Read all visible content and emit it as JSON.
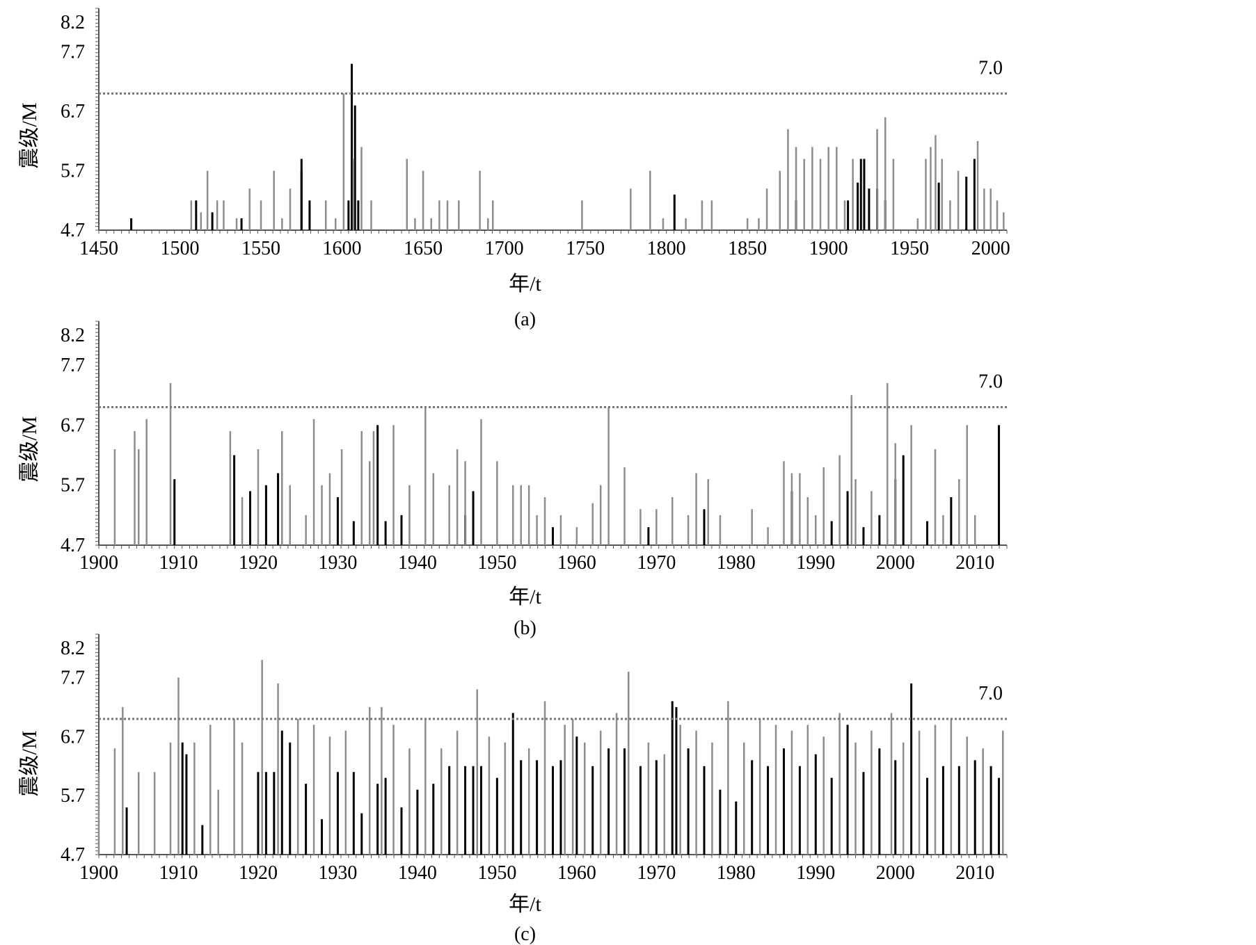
{
  "colors": {
    "dark": "#000000",
    "light": "#8c8c8c",
    "axis": "#555555",
    "threshold": "#777777"
  },
  "chart_data": [
    {
      "type": "bar",
      "caption": "(a)",
      "xlabel": "年/t",
      "ylabel": "震级/M",
      "xlim": [
        1450,
        2010
      ],
      "ylim": [
        4.7,
        8.2
      ],
      "xticks": [
        "1450",
        "1500",
        "1550",
        "1600",
        "1650",
        "1700",
        "1750",
        "1800",
        "1850",
        "1900",
        "1950",
        "2000"
      ],
      "yticks": [
        "4.7",
        "5.7",
        "6.7",
        "7.7",
        "8.2"
      ],
      "threshold": 7.0,
      "threshold_label": "7.0",
      "series": [
        {
          "color": "dark",
          "x": [
            1470,
            1510,
            1520,
            1538,
            1575,
            1575,
            1580,
            1604,
            1606,
            1608,
            1610,
            1805,
            1880,
            1912,
            1918,
            1920,
            1922,
            1925,
            1930,
            1935,
            1968,
            1985,
            1990
          ],
          "y": [
            4.9,
            5.2,
            5.0,
            4.9,
            5.7,
            5.9,
            5.2,
            5.2,
            7.5,
            6.8,
            5.2,
            5.3,
            5.2,
            5.2,
            5.5,
            5.9,
            5.9,
            5.4,
            5.4,
            5.2,
            5.5,
            5.6,
            5.9
          ]
        },
        {
          "color": "light",
          "x": [
            1507,
            1513,
            1517,
            1523,
            1527,
            1535,
            1543,
            1550,
            1558,
            1563,
            1568,
            1590,
            1596,
            1601,
            1607,
            1612,
            1618,
            1640,
            1645,
            1650,
            1655,
            1660,
            1665,
            1672,
            1685,
            1690,
            1693,
            1748,
            1778,
            1790,
            1798,
            1812,
            1822,
            1828,
            1850,
            1857,
            1862,
            1870,
            1875,
            1880,
            1885,
            1890,
            1895,
            1900,
            1905,
            1910,
            1915,
            1930,
            1935,
            1940,
            1955,
            1960,
            1963,
            1966,
            1970,
            1975,
            1980,
            1992,
            1996,
            2000,
            2004,
            2008
          ],
          "y": [
            5.2,
            5.0,
            5.7,
            5.2,
            5.2,
            4.9,
            5.4,
            5.2,
            5.7,
            4.9,
            5.4,
            5.2,
            4.9,
            7.0,
            5.9,
            6.1,
            5.2,
            5.9,
            4.9,
            5.7,
            4.9,
            5.2,
            5.2,
            5.2,
            5.7,
            4.9,
            5.2,
            5.2,
            5.4,
            5.7,
            4.9,
            4.9,
            5.2,
            5.2,
            4.9,
            4.9,
            5.4,
            5.7,
            6.4,
            6.1,
            5.9,
            6.1,
            5.9,
            6.1,
            6.1,
            5.2,
            5.9,
            6.4,
            6.6,
            5.9,
            4.9,
            5.9,
            6.1,
            6.3,
            5.9,
            5.2,
            5.7,
            6.2,
            5.4,
            5.4,
            5.2,
            5.0
          ]
        }
      ]
    },
    {
      "type": "bar",
      "caption": "(b)",
      "xlabel": "年/t",
      "ylabel": "震级/M",
      "xlim": [
        1900,
        2014
      ],
      "ylim": [
        4.7,
        8.2
      ],
      "xticks": [
        "1900",
        "1910",
        "1920",
        "1930",
        "1940",
        "1950",
        "1960",
        "1970",
        "1980",
        "1990",
        "2000",
        "2010"
      ],
      "yticks": [
        "4.7",
        "5.7",
        "6.7",
        "7.7",
        "8.2"
      ],
      "threshold": 7.0,
      "threshold_label": "7.0",
      "series": [
        {
          "color": "dark",
          "x": [
            1909.5,
            1917,
            1919,
            1921,
            1922.5,
            1930,
            1932,
            1935,
            1936,
            1938,
            1946,
            1947,
            1957,
            1969,
            1976,
            1987,
            1992,
            1994,
            1996,
            1998,
            2000,
            2001,
            2004,
            2007,
            2013
          ],
          "y": [
            5.8,
            6.2,
            5.6,
            5.7,
            5.9,
            5.5,
            5.1,
            6.7,
            5.1,
            5.2,
            5.2,
            5.6,
            5.0,
            5.0,
            5.3,
            5.6,
            5.1,
            5.6,
            5.0,
            5.2,
            5.8,
            6.2,
            5.1,
            5.5,
            6.7
          ]
        },
        {
          "color": "light",
          "x": [
            1902,
            1904.5,
            1905,
            1906,
            1909,
            1916.5,
            1918,
            1920,
            1923,
            1924,
            1926,
            1927,
            1928,
            1929,
            1930.5,
            1933,
            1934,
            1934.5,
            1937,
            1939,
            1941,
            1942,
            1944,
            1945,
            1946,
            1948,
            1950,
            1952,
            1953,
            1954,
            1955,
            1956,
            1958,
            1960,
            1962,
            1963,
            1964,
            1966,
            1968,
            1970,
            1972,
            1974,
            1975,
            1976.5,
            1978,
            1982,
            1984,
            1986,
            1987,
            1988,
            1989,
            1990,
            1991,
            1993,
            1994.5,
            1995,
            1997,
            1999,
            2000,
            2002,
            2005,
            2006,
            2008,
            2009,
            2010
          ],
          "y": [
            6.3,
            6.6,
            6.3,
            6.8,
            7.4,
            6.6,
            5.5,
            6.3,
            6.6,
            5.7,
            5.2,
            6.8,
            5.7,
            5.9,
            6.3,
            6.6,
            6.1,
            6.6,
            6.7,
            5.7,
            7.0,
            5.9,
            5.7,
            6.3,
            6.1,
            6.8,
            6.1,
            5.7,
            5.7,
            5.7,
            5.2,
            5.5,
            5.2,
            5.0,
            5.4,
            5.7,
            7.0,
            6.0,
            5.3,
            5.3,
            5.5,
            5.2,
            5.9,
            5.8,
            5.2,
            5.3,
            5.0,
            6.1,
            5.9,
            5.9,
            5.5,
            5.2,
            6.0,
            6.2,
            7.2,
            5.8,
            5.6,
            7.4,
            6.4,
            6.7,
            6.3,
            5.2,
            5.8,
            6.7,
            5.2
          ]
        }
      ]
    },
    {
      "type": "bar",
      "caption": "(c)",
      "xlabel": "年/t",
      "ylabel": "震级/M",
      "xlim": [
        1900,
        2014
      ],
      "ylim": [
        4.7,
        8.2
      ],
      "xticks": [
        "1900",
        "1910",
        "1920",
        "1930",
        "1940",
        "1950",
        "1960",
        "1970",
        "1980",
        "1990",
        "2000",
        "2010"
      ],
      "yticks": [
        "4.7",
        "5.7",
        "6.7",
        "7.7",
        "8.2"
      ],
      "threshold": 7.0,
      "threshold_label": "7.0",
      "series": [
        {
          "color": "dark",
          "x": [
            1903.5,
            1910.5,
            1911,
            1913,
            1920,
            1921,
            1922,
            1923,
            1924,
            1926,
            1928,
            1930,
            1932,
            1933,
            1935,
            1936,
            1938,
            1940,
            1942,
            1944,
            1946,
            1947,
            1948,
            1950,
            1952,
            1953,
            1955,
            1957,
            1958,
            1960,
            1962,
            1964,
            1966,
            1968,
            1970,
            1972,
            1972.5,
            1974,
            1976,
            1978,
            1980,
            1982,
            1984,
            1986,
            1988,
            1990,
            1992,
            1994,
            1996,
            1998,
            2000,
            2002,
            2004,
            2006,
            2008,
            2010,
            2012,
            2013
          ],
          "y": [
            5.5,
            6.6,
            6.4,
            5.2,
            6.1,
            6.1,
            6.1,
            6.8,
            6.6,
            5.9,
            5.3,
            6.1,
            6.1,
            5.4,
            5.9,
            6.0,
            5.5,
            5.8,
            5.9,
            6.2,
            6.2,
            6.2,
            6.2,
            6.0,
            7.1,
            6.3,
            6.3,
            6.2,
            6.3,
            6.7,
            6.2,
            6.5,
            6.5,
            6.2,
            6.3,
            7.3,
            7.2,
            6.5,
            6.2,
            5.8,
            5.6,
            6.3,
            6.2,
            6.5,
            6.2,
            6.4,
            6.0,
            6.9,
            6.1,
            6.5,
            6.3,
            7.6,
            6.0,
            6.2,
            6.2,
            6.3,
            6.2,
            6.0
          ]
        },
        {
          "color": "light",
          "x": [
            1900,
            1902,
            1903,
            1905,
            1907,
            1909,
            1910,
            1912,
            1914,
            1915,
            1917,
            1918,
            1920.5,
            1922.5,
            1925,
            1927,
            1929,
            1931,
            1934,
            1935.5,
            1937,
            1939,
            1941,
            1943,
            1945,
            1947.5,
            1949,
            1951,
            1954,
            1956,
            1958.5,
            1959.5,
            1961,
            1963,
            1965,
            1966.5,
            1969,
            1971,
            1973,
            1975,
            1977,
            1979,
            1981,
            1983,
            1985,
            1987,
            1989,
            1991,
            1993,
            1995,
            1997,
            1999.5,
            2001,
            2003,
            2005,
            2007,
            2009,
            2011,
            2013.5
          ],
          "y": [
            6.1,
            6.5,
            7.2,
            6.1,
            6.1,
            6.6,
            7.7,
            6.6,
            6.9,
            5.8,
            7.0,
            6.6,
            8.0,
            7.6,
            7.0,
            6.9,
            6.7,
            6.8,
            7.2,
            7.2,
            6.9,
            6.5,
            7.0,
            6.5,
            6.8,
            7.5,
            6.7,
            6.6,
            6.5,
            7.3,
            6.9,
            7.0,
            6.6,
            6.8,
            7.1,
            7.8,
            6.6,
            6.4,
            6.9,
            6.8,
            6.6,
            7.3,
            6.6,
            7.0,
            6.9,
            6.8,
            6.9,
            6.7,
            7.1,
            6.6,
            6.8,
            7.1,
            6.6,
            6.8,
            6.9,
            7.0,
            6.7,
            6.5,
            6.8
          ]
        }
      ]
    }
  ]
}
